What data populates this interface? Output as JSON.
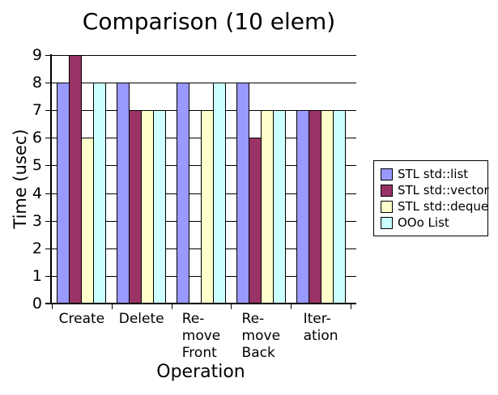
{
  "chart_data": {
    "type": "bar",
    "title": "Comparison (10 elem)",
    "xlabel": "Operation",
    "ylabel": "Time (usec)",
    "ylim": [
      0,
      9
    ],
    "ytick_step": 1,
    "grid": true,
    "legend_position": "right",
    "categories": [
      "Create",
      "Delete",
      "Remove Front",
      "Remove Back",
      "Iteration"
    ],
    "category_label_lines": [
      [
        "Create"
      ],
      [
        "Delete"
      ],
      [
        "Re-",
        "move",
        "Front"
      ],
      [
        "Re-",
        "move",
        "Back"
      ],
      [
        "Iter-",
        "ation"
      ]
    ],
    "series": [
      {
        "name": "STL std::list",
        "color": "#9999FF",
        "values": [
          8,
          8,
          8,
          8,
          7
        ]
      },
      {
        "name": "STL std::vector",
        "color": "#993366",
        "values": [
          9,
          7,
          0,
          6,
          7
        ]
      },
      {
        "name": "STL std::deque",
        "color": "#FFFFCC",
        "values": [
          6,
          7,
          7,
          7,
          7
        ]
      },
      {
        "name": "OOo List",
        "color": "#CCFFFF",
        "values": [
          8,
          7,
          8,
          7,
          7
        ]
      }
    ]
  }
}
